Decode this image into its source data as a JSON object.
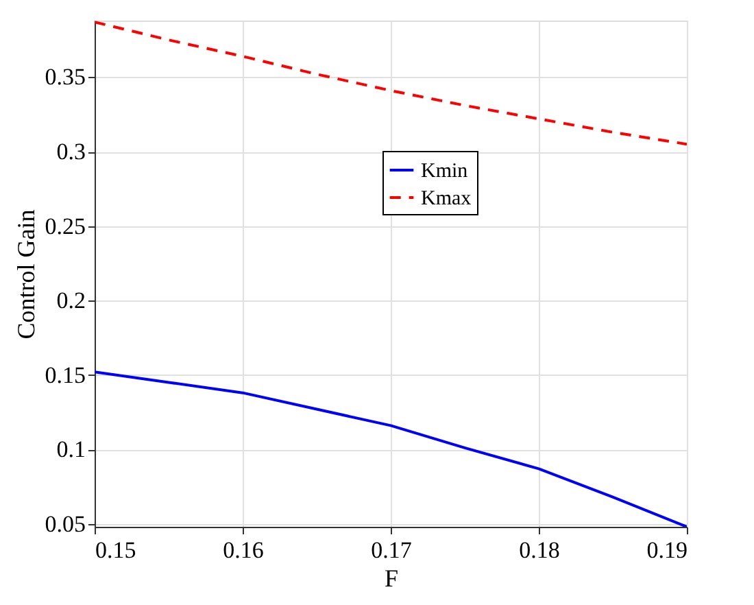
{
  "chart_data": {
    "type": "line",
    "xlabel": "F",
    "ylabel": "Control Gain",
    "x": [
      0.15,
      0.155,
      0.16,
      0.165,
      0.17,
      0.175,
      0.18,
      0.185,
      0.19
    ],
    "series": [
      {
        "name": "Kmin",
        "color": "#0000ff",
        "line_style": "solid",
        "values": [
          0.152,
          0.145,
          0.138,
          0.127,
          0.116,
          0.101,
          0.087,
          0.068,
          0.048
        ]
      },
      {
        "name": "Kmax",
        "color": "#ff0000",
        "line_style": "dashed",
        "values": [
          0.387,
          0.375,
          0.364,
          0.352,
          0.341,
          0.331,
          0.322,
          0.313,
          0.305
        ]
      }
    ],
    "xlim": [
      0.15,
      0.19
    ],
    "xticks": [
      0.15,
      0.16,
      0.17,
      0.18,
      0.19
    ],
    "ylim": [
      0.048,
      0.388
    ],
    "yticks": [
      0.05,
      0.1,
      0.15,
      0.2,
      0.25,
      0.3,
      0.35
    ],
    "grid": true,
    "legend": "top",
    "marker": "none"
  }
}
